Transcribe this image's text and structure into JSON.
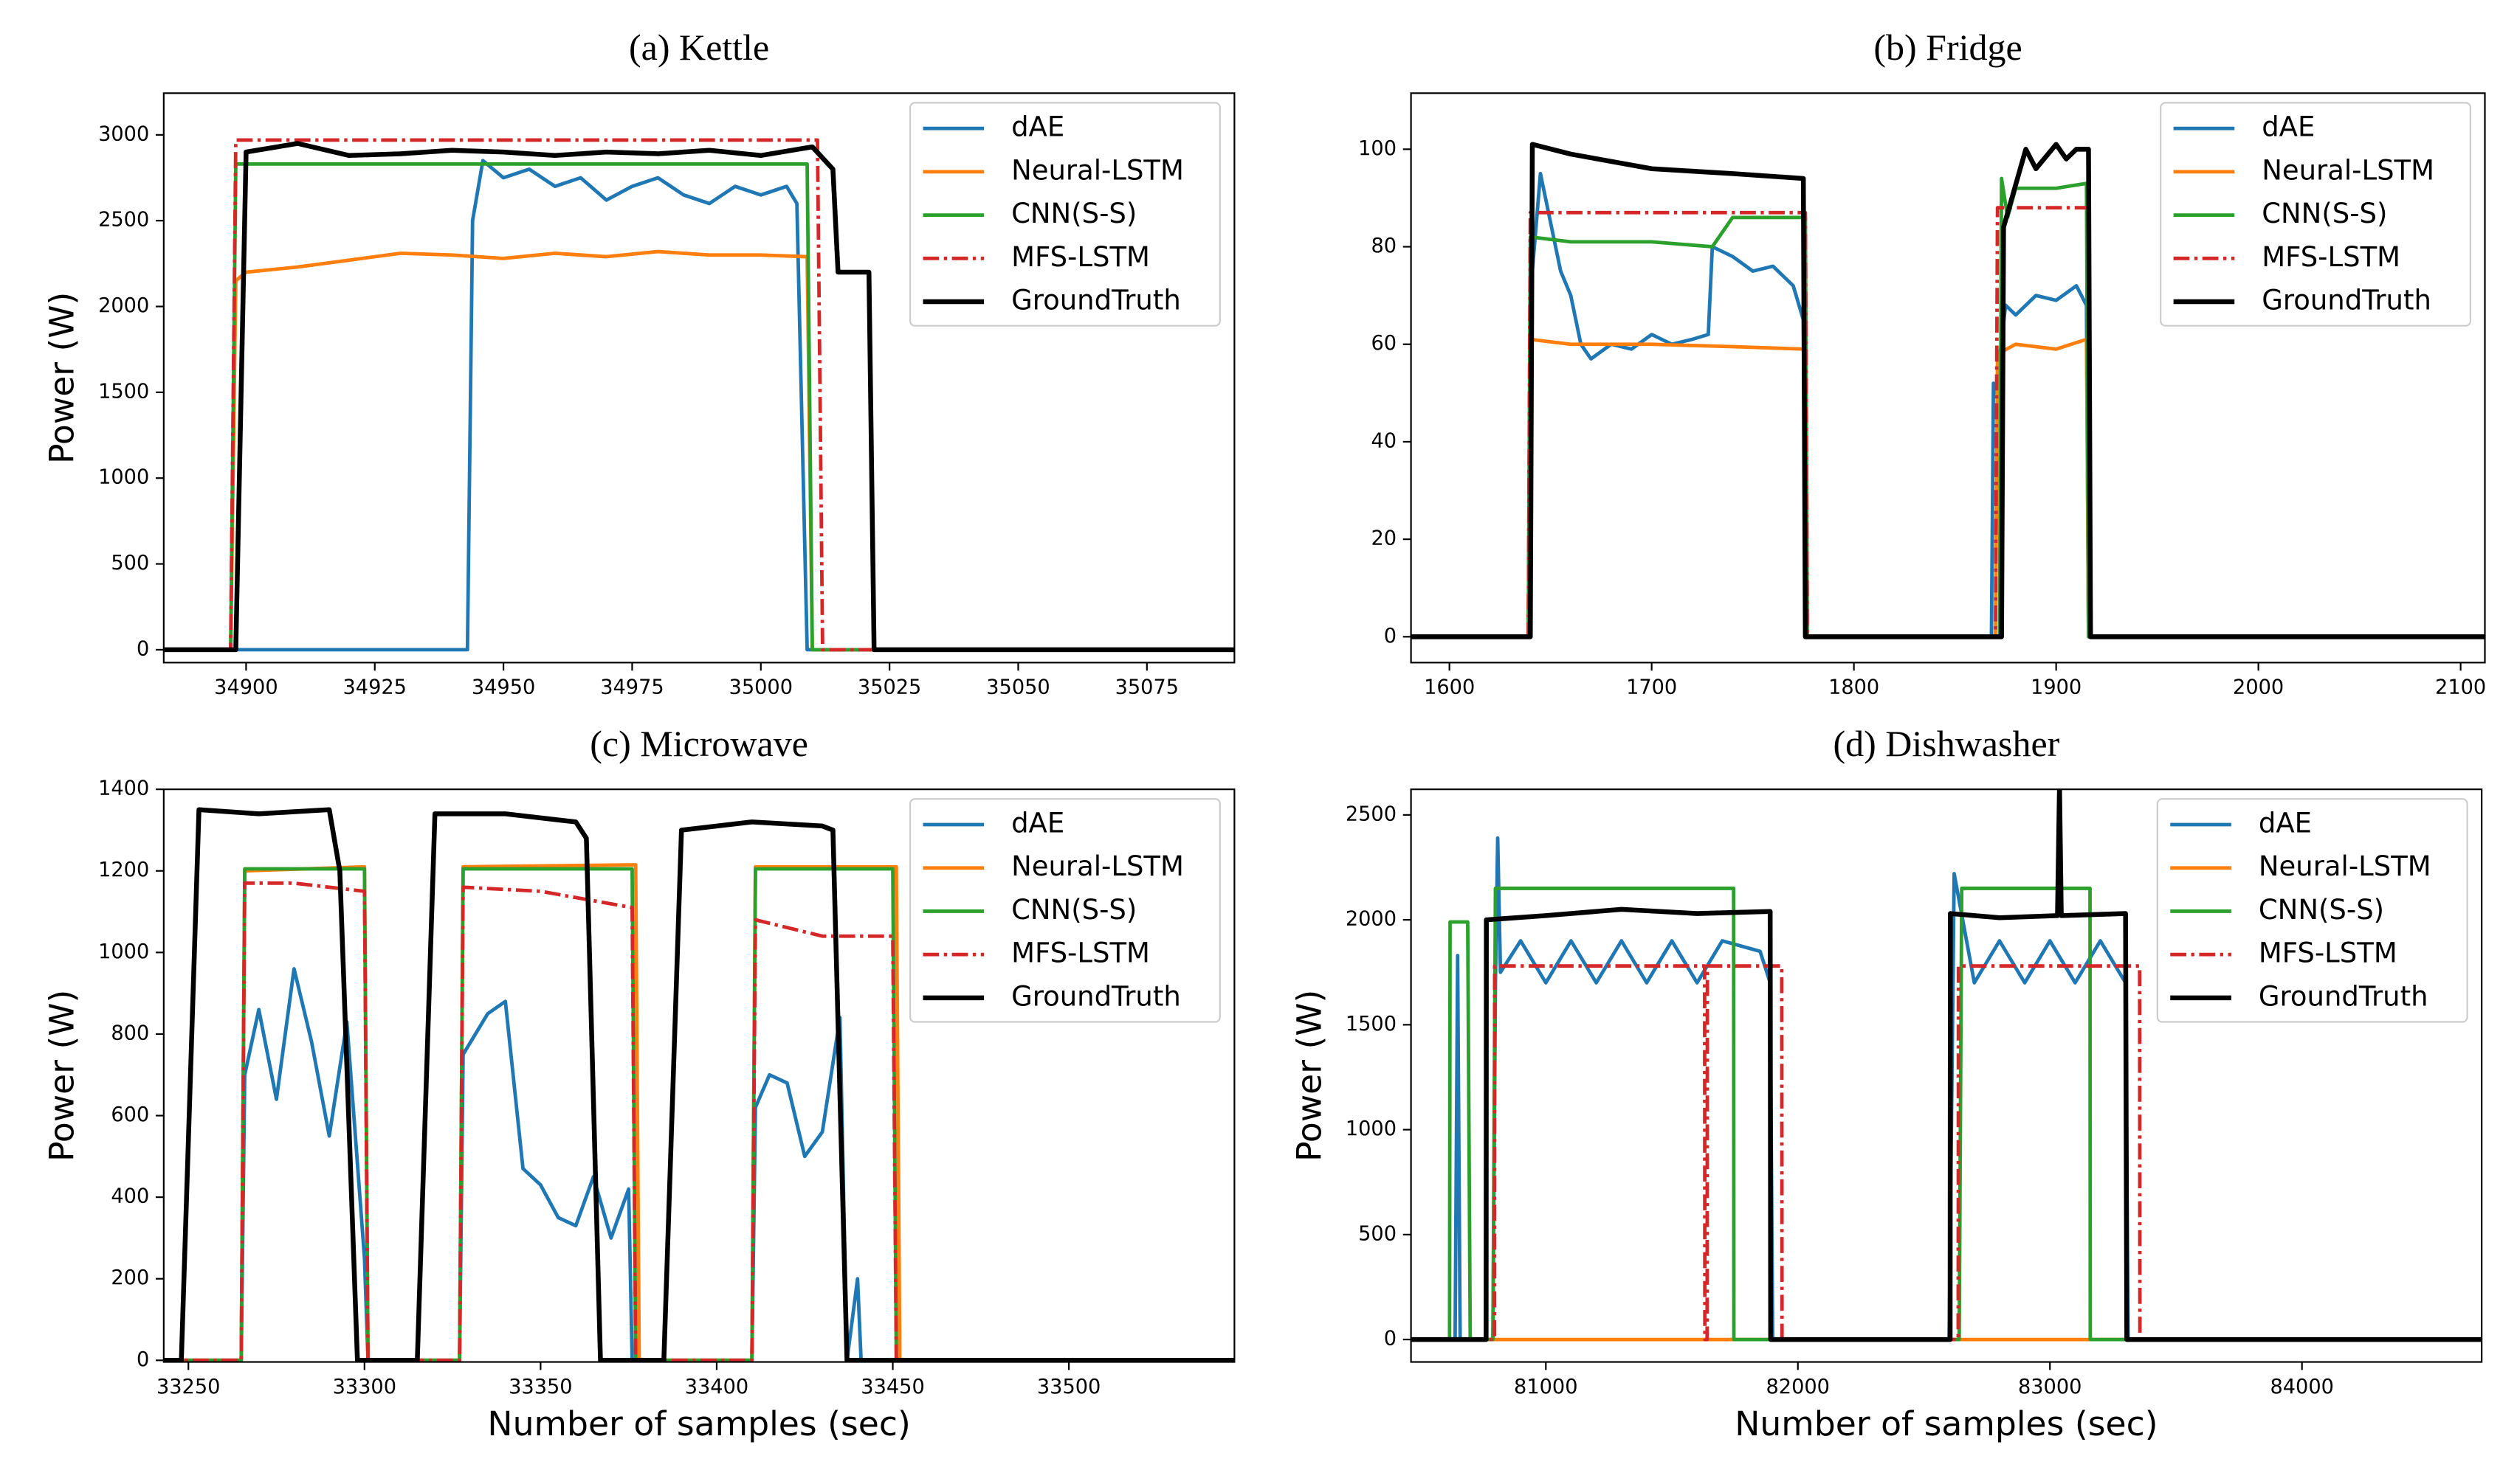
{
  "chart_data": [
    {
      "type": "line",
      "title": "(a) Kettle",
      "y_label": "Power (W)",
      "legend": "upper right",
      "xlim": [
        34884,
        35092
      ],
      "ylim": [
        -75,
        3243
      ],
      "xticks": [
        34900,
        34925,
        34950,
        34975,
        35000,
        35025,
        35050,
        35075
      ],
      "yticks": [
        0,
        500,
        1000,
        1500,
        2000,
        2500,
        3000
      ],
      "series": [
        {
          "name": "dAE",
          "color": "#1f77b4",
          "x": [
            34884,
            34943,
            34944,
            34946,
            34950,
            34955,
            34960,
            34965,
            34970,
            34975,
            34980,
            34985,
            34990,
            34995,
            35000,
            35005,
            35007,
            35009,
            35092
          ],
          "values": [
            0,
            0,
            2500,
            2850,
            2750,
            2800,
            2700,
            2750,
            2620,
            2700,
            2750,
            2650,
            2600,
            2700,
            2650,
            2700,
            2600,
            0,
            0
          ]
        },
        {
          "name": "Neural-LSTM",
          "color": "#ff7f0e",
          "x": [
            34884,
            34897,
            34898,
            34900,
            34910,
            34920,
            34930,
            34940,
            34950,
            34960,
            34970,
            34980,
            34990,
            35000,
            35009,
            35010,
            35092
          ],
          "values": [
            0,
            0,
            2150,
            2200,
            2230,
            2270,
            2310,
            2300,
            2280,
            2310,
            2290,
            2320,
            2300,
            2300,
            2290,
            0,
            0
          ]
        },
        {
          "name": "CNN(S-S)",
          "color": "#2ca02c",
          "x": [
            34884,
            34897,
            34898,
            35009,
            35010,
            35092
          ],
          "values": [
            0,
            0,
            2830,
            2830,
            0,
            0
          ]
        },
        {
          "name": "MFS-LSTM",
          "color": "#d62728",
          "dash": true,
          "x": [
            34884,
            34897,
            34898,
            35011,
            35012,
            35092
          ],
          "values": [
            0,
            0,
            2970,
            2970,
            0,
            0
          ]
        },
        {
          "name": "GroundTruth",
          "color": "#000000",
          "x": [
            34884,
            34898,
            34900,
            34910,
            34920,
            34930,
            34940,
            34950,
            34960,
            34970,
            34980,
            34990,
            35000,
            35010,
            35014,
            35015,
            35019,
            35021,
            35022,
            35092
          ],
          "values": [
            0,
            0,
            2900,
            2950,
            2880,
            2890,
            2910,
            2900,
            2880,
            2900,
            2890,
            2910,
            2880,
            2930,
            2800,
            2200,
            2200,
            2200,
            0,
            0
          ]
        }
      ]
    },
    {
      "type": "line",
      "title": "(b) Fridge",
      "legend": "upper right",
      "xlim": [
        1581,
        2112
      ],
      "ylim": [
        -5.3,
        111.5
      ],
      "xticks": [
        1600,
        1700,
        1800,
        1900,
        2000,
        2100
      ],
      "yticks": [
        0,
        20,
        40,
        60,
        80,
        100
      ],
      "series": [
        {
          "name": "dAE",
          "color": "#1f77b4",
          "x": [
            1581,
            1639,
            1640,
            1645,
            1650,
            1655,
            1660,
            1665,
            1670,
            1680,
            1690,
            1700,
            1710,
            1720,
            1728,
            1730,
            1740,
            1750,
            1760,
            1770,
            1775,
            1776,
            1868,
            1869,
            1870,
            1875,
            1880,
            1890,
            1900,
            1910,
            1915,
            1916,
            2112
          ],
          "values": [
            0,
            0,
            70,
            95,
            85,
            75,
            70,
            60,
            57,
            60,
            59,
            62,
            60,
            61,
            62,
            80,
            78,
            75,
            76,
            72,
            65,
            0,
            0,
            52,
            50,
            68,
            66,
            70,
            69,
            72,
            68,
            0,
            0
          ]
        },
        {
          "name": "Neural-LSTM",
          "color": "#ff7f0e",
          "x": [
            1581,
            1639,
            1640,
            1660,
            1700,
            1740,
            1776,
            1777,
            1870,
            1871,
            1880,
            1900,
            1915,
            1916,
            2112
          ],
          "values": [
            0,
            0,
            61,
            60,
            60,
            59.5,
            59,
            0,
            0,
            58,
            60,
            59,
            61,
            0,
            0
          ]
        },
        {
          "name": "CNN(S-S)",
          "color": "#2ca02c",
          "x": [
            1581,
            1639,
            1640,
            1660,
            1700,
            1730,
            1740,
            1776,
            1777,
            1872,
            1873,
            1876,
            1880,
            1900,
            1915,
            1916,
            2112
          ],
          "values": [
            0,
            0,
            82,
            81,
            81,
            80,
            86,
            86,
            0,
            0,
            94,
            86,
            92,
            92,
            93,
            0,
            0
          ]
        },
        {
          "name": "MFS-LSTM",
          "color": "#d62728",
          "dash": true,
          "x": [
            1581,
            1639,
            1640,
            1776,
            1777,
            1870,
            1871,
            1916,
            1917,
            2112
          ],
          "values": [
            0,
            0,
            87,
            87,
            0,
            0,
            88,
            88,
            0,
            0
          ]
        },
        {
          "name": "GroundTruth",
          "color": "#000000",
          "x": [
            1581,
            1640,
            1641,
            1660,
            1700,
            1740,
            1775,
            1776,
            1873,
            1874,
            1885,
            1890,
            1900,
            1905,
            1910,
            1916,
            1917,
            2112
          ],
          "values": [
            0,
            0,
            101,
            99,
            96,
            95,
            94,
            0,
            0,
            84,
            100,
            96,
            101,
            98,
            100,
            100,
            0,
            0
          ]
        }
      ]
    },
    {
      "type": "line",
      "title": "(c) Microwave",
      "y_label": "Power (W)",
      "x_label": "Number of samples (sec)",
      "legend": "upper right",
      "xlim": [
        33243,
        33547
      ],
      "ylim": [
        -4,
        1400
      ],
      "xticks": [
        33250,
        33300,
        33350,
        33400,
        33450,
        33500
      ],
      "yticks": [
        0,
        200,
        400,
        600,
        800,
        1000,
        1200,
        1400
      ],
      "series": [
        {
          "name": "dAE",
          "color": "#1f77b4",
          "x": [
            33243,
            33265,
            33266,
            33270,
            33275,
            33280,
            33285,
            33290,
            33295,
            33300,
            33301,
            33327,
            33328,
            33335,
            33340,
            33345,
            33350,
            33355,
            33360,
            33365,
            33370,
            33375,
            33376,
            33410,
            33411,
            33415,
            33420,
            33425,
            33430,
            33435,
            33437,
            33440,
            33441,
            33547
          ],
          "values": [
            0,
            0,
            700,
            860,
            640,
            960,
            780,
            550,
            830,
            250,
            0,
            0,
            750,
            850,
            880,
            470,
            430,
            350,
            330,
            450,
            300,
            420,
            0,
            0,
            620,
            700,
            680,
            500,
            560,
            840,
            0,
            200,
            0,
            0
          ]
        },
        {
          "name": "Neural-LSTM",
          "color": "#ff7f0e",
          "x": [
            33243,
            33265,
            33266,
            33300,
            33301,
            33327,
            33328,
            33377,
            33378,
            33410,
            33411,
            33451,
            33452,
            33547
          ],
          "values": [
            0,
            0,
            1200,
            1210,
            0,
            0,
            1210,
            1215,
            0,
            0,
            1210,
            1210,
            0,
            0
          ]
        },
        {
          "name": "CNN(S-S)",
          "color": "#2ca02c",
          "x": [
            33243,
            33265,
            33266,
            33300,
            33301,
            33327,
            33328,
            33376,
            33377,
            33410,
            33411,
            33450,
            33451,
            33547
          ],
          "values": [
            0,
            0,
            1205,
            1205,
            0,
            0,
            1205,
            1205,
            0,
            0,
            1205,
            1205,
            0,
            0
          ]
        },
        {
          "name": "MFS-LSTM",
          "color": "#d62728",
          "dash": true,
          "x": [
            33243,
            33265,
            33266,
            33280,
            33300,
            33301,
            33327,
            33328,
            33350,
            33376,
            33377,
            33410,
            33411,
            33430,
            33450,
            33451,
            33547
          ],
          "values": [
            0,
            0,
            1170,
            1170,
            1150,
            0,
            0,
            1160,
            1150,
            1110,
            0,
            0,
            1080,
            1040,
            1040,
            0,
            0
          ]
        },
        {
          "name": "GroundTruth",
          "color": "#000000",
          "x": [
            33243,
            33248,
            33253,
            33270,
            33290,
            33293,
            33298,
            33315,
            33320,
            33340,
            33360,
            33363,
            33367,
            33385,
            33390,
            33410,
            33430,
            33433,
            33437,
            33547
          ],
          "values": [
            0,
            0,
            1350,
            1340,
            1350,
            1200,
            0,
            0,
            1340,
            1340,
            1320,
            1280,
            0,
            0,
            1300,
            1320,
            1310,
            1300,
            0,
            0
          ]
        }
      ]
    },
    {
      "type": "line",
      "title": "(d) Dishwasher",
      "y_label": "Power (W)",
      "x_label": "Number of samples (sec)",
      "legend": "upper right",
      "xlim": [
        80465,
        84713
      ],
      "ylim": [
        -107,
        2622
      ],
      "xticks": [
        81000,
        82000,
        83000,
        84000
      ],
      "yticks": [
        0,
        500,
        1000,
        1500,
        2000,
        2500
      ],
      "series": [
        {
          "name": "dAE",
          "color": "#1f77b4",
          "x": [
            80465,
            80640,
            80650,
            80660,
            80790,
            80800,
            80809,
            80820,
            80900,
            81000,
            81100,
            81200,
            81300,
            81400,
            81500,
            81600,
            81700,
            81850,
            81890,
            81900,
            82600,
            82620,
            82700,
            82800,
            82900,
            83000,
            83100,
            83200,
            83300,
            83310,
            84713
          ],
          "values": [
            0,
            0,
            1830,
            0,
            0,
            1700,
            2390,
            1750,
            1900,
            1700,
            1900,
            1700,
            1900,
            1700,
            1900,
            1700,
            1900,
            1850,
            1700,
            0,
            0,
            2220,
            1700,
            1900,
            1700,
            1900,
            1700,
            1900,
            1700,
            0,
            0
          ]
        },
        {
          "name": "Neural-LSTM",
          "color": "#ff7f0e",
          "x": [
            80465,
            84713
          ],
          "values": [
            0,
            0
          ]
        },
        {
          "name": "CNN(S-S)",
          "color": "#2ca02c",
          "x": [
            80465,
            80618,
            80620,
            80690,
            80700,
            80790,
            80800,
            81745,
            81746,
            82640,
            82650,
            83159,
            83160,
            84713
          ],
          "values": [
            0,
            0,
            1990,
            1990,
            0,
            0,
            2150,
            2150,
            0,
            0,
            2150,
            2150,
            0,
            0
          ]
        },
        {
          "name": "MFS-LSTM",
          "color": "#d62728",
          "dash": true,
          "x": [
            80465,
            80796,
            80797,
            81630,
            81631,
            81640,
            81641,
            81936,
            81937,
            82636,
            82637,
            83356,
            83357,
            84713
          ],
          "values": [
            0,
            0,
            1780,
            1780,
            0,
            0,
            1780,
            1780,
            0,
            0,
            1780,
            1780,
            0,
            0
          ]
        },
        {
          "name": "GroundTruth",
          "color": "#000000",
          "x": [
            80465,
            80763,
            80764,
            81000,
            81300,
            81600,
            81890,
            81892,
            82604,
            82605,
            82800,
            83030,
            83038,
            83045,
            83300,
            83305,
            84713
          ],
          "values": [
            0,
            0,
            2000,
            2020,
            2050,
            2030,
            2040,
            0,
            0,
            2030,
            2010,
            2020,
            2640,
            2020,
            2030,
            0,
            0
          ]
        }
      ]
    }
  ]
}
